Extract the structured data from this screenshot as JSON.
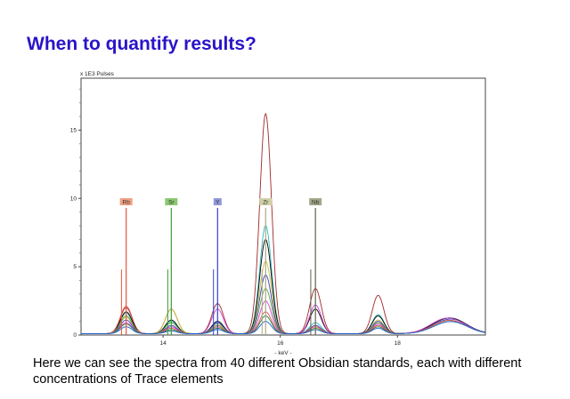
{
  "slide": {
    "title": "When to quantify results?",
    "caption": "Here we can see the spectra from 40 different Obsidian standards, each with different concentrations of Trace elements"
  },
  "chart_data": {
    "type": "line",
    "ylabel": "x 1E3 Pulses",
    "xlabel": "- keV -",
    "xlim": [
      12.6,
      19.5
    ],
    "ylim": [
      0,
      18.8
    ],
    "xticks": [
      14,
      16,
      18
    ],
    "yticks": [
      0,
      5,
      10,
      15
    ],
    "grid": false,
    "element_markers": [
      {
        "label": "Rb",
        "energy": 13.37,
        "height": 9.3,
        "minor_energy": 13.29,
        "minor_height": 4.8,
        "color": "#e8553a",
        "bg": "#f0a080"
      },
      {
        "label": "Sr",
        "energy": 14.14,
        "height": 9.3,
        "minor_energy": 14.08,
        "minor_height": 4.8,
        "color": "#3a9a30",
        "bg": "#8cc870"
      },
      {
        "label": "Y",
        "energy": 14.93,
        "height": 9.3,
        "minor_energy": 14.86,
        "minor_height": 4.8,
        "color": "#3040c8",
        "bg": "#9098d8"
      },
      {
        "label": "Zr",
        "energy": 15.75,
        "height": 9.3,
        "minor_energy": 15.69,
        "minor_height": 4.8,
        "color": "#a8a888",
        "bg": "#d0d0a8"
      },
      {
        "label": "Nb",
        "energy": 16.6,
        "height": 9.3,
        "minor_energy": 16.52,
        "minor_height": 4.8,
        "color": "#606050",
        "bg": "#a0a888"
      }
    ],
    "peak_energies": [
      13.37,
      14.14,
      14.93,
      15.75,
      16.6,
      17.67,
      18.75,
      19.0
    ],
    "series": [
      {
        "color": "#a02828",
        "values": [
          1.9,
          1.8,
          2.2,
          16.1,
          3.3,
          2.8,
          0.6,
          0.7
        ]
      },
      {
        "color": "#30b8b8",
        "values": [
          1.5,
          0.9,
          0.9,
          7.9,
          0.8,
          1.4,
          0.6,
          0.7
        ]
      },
      {
        "color": "#000000",
        "values": [
          1.6,
          1.0,
          0.9,
          6.9,
          1.8,
          1.3,
          0.6,
          0.7
        ]
      },
      {
        "color": "#c8c040",
        "values": [
          1.2,
          1.8,
          0.7,
          5.3,
          0.5,
          1.0,
          0.5,
          0.6
        ]
      },
      {
        "color": "#4040c0",
        "values": [
          1.0,
          0.6,
          0.8,
          4.3,
          0.6,
          0.9,
          0.5,
          0.7
        ]
      },
      {
        "color": "#60a040",
        "values": [
          1.3,
          0.8,
          0.6,
          3.3,
          0.4,
          0.8,
          0.5,
          0.6
        ]
      },
      {
        "color": "#d040d0",
        "values": [
          0.8,
          0.5,
          1.8,
          2.4,
          2.1,
          0.7,
          0.7,
          0.6
        ]
      },
      {
        "color": "#e05050",
        "values": [
          2.0,
          0.4,
          0.5,
          1.6,
          0.5,
          0.6,
          0.5,
          0.6
        ]
      },
      {
        "color": "#208040",
        "values": [
          0.7,
          0.3,
          0.4,
          1.3,
          0.3,
          0.5,
          0.4,
          0.6
        ]
      },
      {
        "color": "#2060d0",
        "values": [
          0.5,
          0.2,
          0.3,
          0.9,
          0.3,
          0.4,
          0.4,
          0.6
        ]
      }
    ]
  }
}
